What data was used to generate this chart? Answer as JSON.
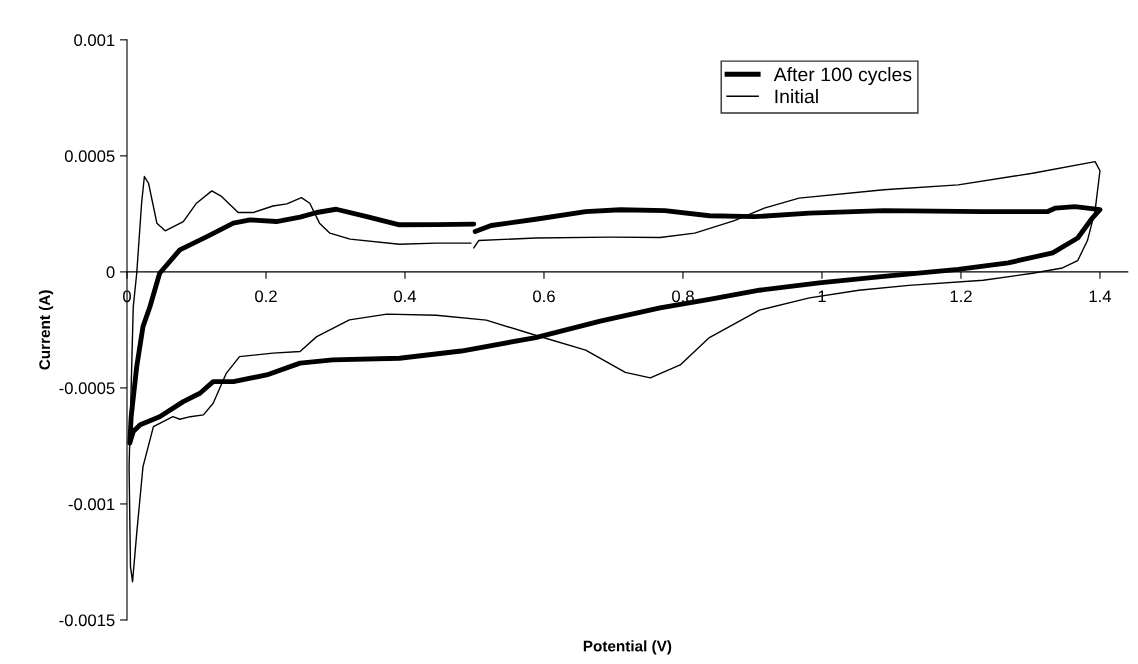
{
  "chart_data": {
    "type": "line",
    "xlabel": "Potential (V)",
    "ylabel": "Current (A)",
    "xlim": [
      0,
      1.44
    ],
    "ylim": [
      -0.0015,
      0.001
    ],
    "xticks": [
      0,
      0.2,
      0.4,
      0.6,
      0.8,
      1,
      1.2,
      1.4
    ],
    "yticks": [
      -0.0015,
      -0.001,
      -0.0005,
      0,
      0.0005,
      0.001
    ],
    "grid": false,
    "legend": "top right",
    "marker": "none",
    "line_style": "solid",
    "series": [
      {
        "name": "After 100 cycles",
        "color": "#000000",
        "x": [
          0.501,
          0.524,
          0.588,
          0.66,
          0.71,
          0.774,
          0.838,
          0.903,
          0.982,
          1.089,
          1.232,
          1.325,
          1.336,
          1.364,
          1.4,
          1.389,
          1.368,
          1.332,
          1.268,
          1.196,
          1.089,
          0.996,
          0.91,
          0.838,
          0.767,
          0.681,
          0.588,
          0.481,
          0.392,
          0.296,
          0.249,
          0.201,
          0.153,
          0.124,
          0.105,
          0.081,
          0.047,
          0.019,
          0.009,
          0.004,
          0.006,
          0.014,
          0.023,
          0.033,
          0.047,
          0.076,
          0.115,
          0.153,
          0.177,
          0.215,
          0.249,
          0.273,
          0.301,
          0.345,
          0.392,
          0.445,
          0.499
        ],
        "values": [
          0.000174,
          0.0002,
          0.000227,
          0.00026,
          0.000268,
          0.000264,
          0.000242,
          0.000238,
          0.000253,
          0.000264,
          0.00026,
          0.00026,
          0.000275,
          0.000281,
          0.000268,
          0.000232,
          0.000146,
          8.2e-05,
          3.9e-05,
          1.1e-05,
          -1.9e-05,
          -4.7e-05,
          -7.9e-05,
          -0.000118,
          -0.000155,
          -0.000212,
          -0.000283,
          -0.000341,
          -0.000372,
          -0.000379,
          -0.000393,
          -0.000444,
          -0.000473,
          -0.000473,
          -0.000523,
          -0.000559,
          -0.000624,
          -0.000659,
          -0.000688,
          -0.000738,
          -0.000624,
          -0.000408,
          -0.000236,
          -0.00015,
          -6e-06,
          9.5e-05,
          0.000152,
          0.00021,
          0.000224,
          0.000217,
          0.000236,
          0.000256,
          0.00027,
          0.000238,
          0.000203,
          0.000204,
          0.000206
        ]
      },
      {
        "name": "Initial",
        "color": "#000000",
        "x": [
          0.499,
          0.506,
          0.588,
          0.695,
          0.767,
          0.817,
          0.874,
          0.917,
          0.967,
          1.089,
          1.196,
          1.303,
          1.393,
          1.4,
          1.393,
          1.382,
          1.368,
          1.346,
          1.303,
          1.232,
          1.125,
          1.053,
          0.982,
          0.91,
          0.838,
          0.796,
          0.753,
          0.717,
          0.66,
          0.588,
          0.517,
          0.445,
          0.374,
          0.32,
          0.273,
          0.249,
          0.21,
          0.162,
          0.143,
          0.124,
          0.11,
          0.091,
          0.076,
          0.066,
          0.038,
          0.023,
          0.014,
          0.008,
          0.005,
          0.003,
          0.009,
          0.014,
          0.021,
          0.025,
          0.031,
          0.043,
          0.055,
          0.081,
          0.1,
          0.122,
          0.136,
          0.16,
          0.182,
          0.21,
          0.23,
          0.251,
          0.263,
          0.277,
          0.292,
          0.321,
          0.392,
          0.445,
          0.495
        ],
        "values": [
          0.000103,
          0.000135,
          0.000146,
          0.00015,
          0.000148,
          0.000167,
          0.000221,
          0.000275,
          0.000318,
          0.000354,
          0.000375,
          0.000425,
          0.000475,
          0.000436,
          0.000264,
          0.000135,
          4.9e-05,
          1.7e-05,
          -6e-06,
          -3.6e-05,
          -5.8e-05,
          -7.9e-05,
          -0.000112,
          -0.000165,
          -0.000283,
          -0.000401,
          -0.000457,
          -0.000433,
          -0.000337,
          -0.000273,
          -0.000208,
          -0.000187,
          -0.000182,
          -0.000207,
          -0.000279,
          -0.000343,
          -0.00035,
          -0.000365,
          -0.000436,
          -0.000566,
          -0.000616,
          -0.000624,
          -0.000635,
          -0.000624,
          -0.000667,
          -0.000839,
          -0.001126,
          -0.001335,
          -0.00127,
          -0.000839,
          -0.00015,
          -6e-06,
          0.000296,
          0.000411,
          0.000382,
          0.00021,
          0.000177,
          0.000217,
          0.000296,
          0.000349,
          0.000325,
          0.000256,
          0.000256,
          0.000284,
          0.000293,
          0.00032,
          0.000296,
          0.00021,
          0.000167,
          0.000141,
          0.000119,
          0.000124,
          0.000124
        ]
      }
    ]
  }
}
